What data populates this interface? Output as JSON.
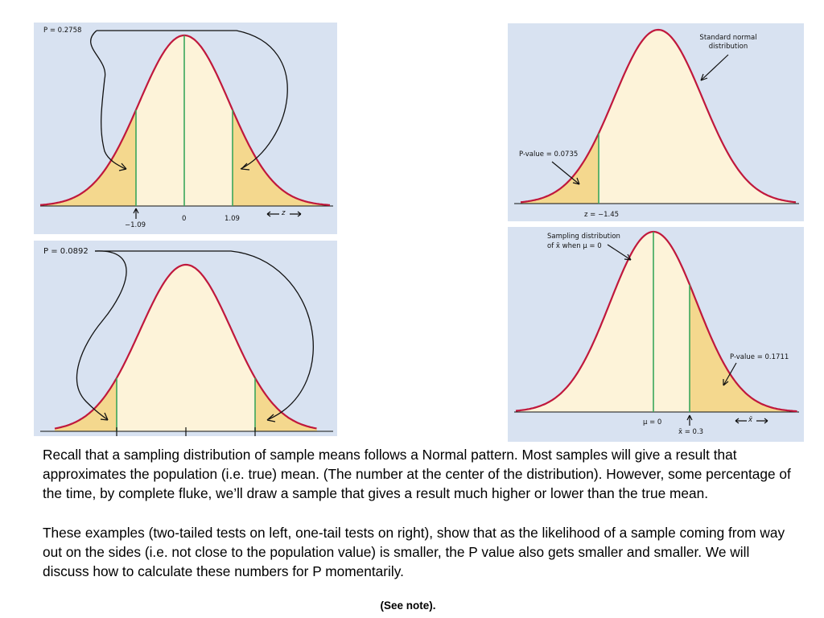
{
  "panels": {
    "top_left": {
      "p_label": "P = 0.2758",
      "ticks": [
        "−1.09",
        "0",
        "1.09"
      ],
      "axis_label": "z"
    },
    "bottom_left": {
      "p_label": "P = 0.0892"
    },
    "top_right": {
      "curve_label": "Standard normal distribution",
      "p_label": "P-value = 0.0735",
      "z_label": "z = −1.45"
    },
    "bottom_right": {
      "curve_label_line1": "Sampling distribution",
      "curve_label_line2": "of x̄ when μ = 0",
      "p_label": "P-value = 0.1711",
      "mu_label": "μ = 0",
      "xbar_label": "x̄ = 0.3",
      "axis_label": "x̄"
    }
  },
  "text": {
    "paragraph1": "Recall that a sampling distribution of sample means follows a Normal pattern. Most samples will give a result that approximates the population (i.e. true) mean. (The number at the center of the distribution). However, some percentage of the time, by complete fluke, we’ll draw a sample that gives a result much higher or lower than the true mean.",
    "paragraph2": "These examples (two-tailed tests on left, one-tail tests on right), show that as the likelihood of a sample coming from way out on the sides (i.e. not close to the population value) is smaller, the P value also gets smaller and smaller.  We will discuss how to calculate these numbers for P momentarily.",
    "note": "(See note)."
  },
  "colors": {
    "panel_bg": "#d8e2f1",
    "curve_fill": "#fdf3d9",
    "tail_fill": "#f4d88e",
    "curve_stroke": "#c0183c",
    "marker_line": "#3aa65a",
    "arrow": "#111111"
  }
}
